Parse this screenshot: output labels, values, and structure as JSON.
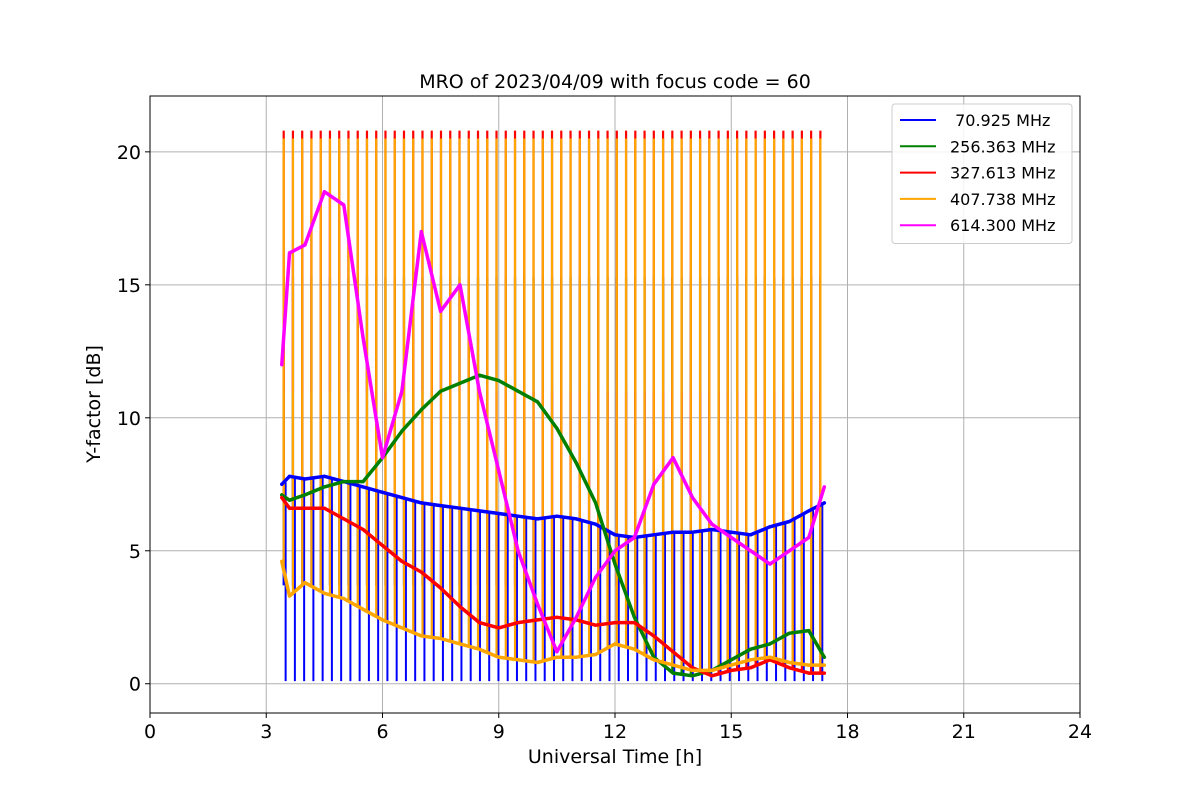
{
  "chart_data": {
    "type": "line",
    "title": "MRO of 2023/04/09 with focus code = 60",
    "xlabel": "Universal Time [h]",
    "ylabel": "Y-factor [dB]",
    "xlim": [
      0,
      24
    ],
    "ylim": [
      -1.1,
      22.1
    ],
    "xticks": [
      0,
      3,
      6,
      9,
      12,
      15,
      18,
      21,
      24
    ],
    "yticks": [
      0,
      5,
      10,
      15,
      20
    ],
    "grid": true,
    "legend_position": "top-right",
    "calibration_peaks": {
      "start": 3.45,
      "end": 17.3,
      "count": 59,
      "top_levels": {
        "70.925 MHz": 3.7,
        "256.363 MHz": 15.3,
        "327.613 MHz": 20.8,
        "407.738 MHz": 20.5,
        "614.300 MHz": 11.0
      },
      "dip_levels": {
        "70.925 MHz": 0.1
      }
    },
    "series": [
      {
        "name": " 70.925 MHz",
        "color": "#0000ff",
        "x": [
          3.4,
          3.6,
          4.0,
          4.5,
          5.0,
          5.5,
          6.0,
          6.5,
          7.0,
          7.5,
          8.0,
          8.5,
          9.0,
          9.5,
          10.0,
          10.5,
          11.0,
          11.5,
          12.0,
          12.5,
          13.0,
          13.5,
          14.0,
          14.5,
          15.0,
          15.5,
          16.0,
          16.5,
          17.0,
          17.4
        ],
        "values": [
          7.5,
          7.8,
          7.7,
          7.8,
          7.6,
          7.4,
          7.2,
          7.0,
          6.8,
          6.7,
          6.6,
          6.5,
          6.4,
          6.3,
          6.2,
          6.3,
          6.2,
          6.0,
          5.6,
          5.5,
          5.6,
          5.7,
          5.7,
          5.8,
          5.7,
          5.6,
          5.9,
          6.1,
          6.5,
          6.8
        ]
      },
      {
        "name": "256.363 MHz",
        "color": "#008000",
        "x": [
          3.4,
          3.6,
          4.0,
          4.5,
          5.0,
          5.5,
          6.0,
          6.5,
          7.0,
          7.5,
          8.0,
          8.5,
          9.0,
          9.5,
          10.0,
          10.5,
          11.0,
          11.5,
          12.0,
          12.5,
          13.0,
          13.5,
          14.0,
          14.5,
          15.0,
          15.5,
          16.0,
          16.5,
          17.0,
          17.4
        ],
        "values": [
          7.1,
          6.9,
          7.1,
          7.4,
          7.6,
          7.6,
          8.5,
          9.5,
          10.3,
          11.0,
          11.3,
          11.6,
          11.4,
          11.0,
          10.6,
          9.6,
          8.3,
          6.8,
          4.5,
          2.5,
          1.0,
          0.4,
          0.3,
          0.5,
          0.9,
          1.3,
          1.5,
          1.9,
          2.0,
          1.0
        ]
      },
      {
        "name": "327.613 MHz",
        "color": "#ff0000",
        "x": [
          3.4,
          3.6,
          4.0,
          4.5,
          5.0,
          5.5,
          6.0,
          6.5,
          7.0,
          7.5,
          8.0,
          8.5,
          9.0,
          9.5,
          10.0,
          10.5,
          11.0,
          11.5,
          12.0,
          12.5,
          13.0,
          13.5,
          14.0,
          14.5,
          15.0,
          15.5,
          16.0,
          16.5,
          17.0,
          17.4
        ],
        "values": [
          7.0,
          6.6,
          6.6,
          6.6,
          6.2,
          5.8,
          5.2,
          4.6,
          4.2,
          3.6,
          2.9,
          2.3,
          2.1,
          2.3,
          2.4,
          2.5,
          2.4,
          2.2,
          2.3,
          2.3,
          1.8,
          1.2,
          0.6,
          0.3,
          0.5,
          0.6,
          0.9,
          0.6,
          0.4,
          0.4
        ]
      },
      {
        "name": "407.738 MHz",
        "color": "#ffa500",
        "x": [
          3.4,
          3.6,
          4.0,
          4.5,
          5.0,
          5.5,
          6.0,
          6.5,
          7.0,
          7.5,
          8.0,
          8.5,
          9.0,
          9.5,
          10.0,
          10.5,
          11.0,
          11.5,
          12.0,
          12.5,
          13.0,
          13.5,
          14.0,
          14.5,
          15.0,
          15.5,
          16.0,
          16.5,
          17.0,
          17.4
        ],
        "values": [
          4.6,
          3.3,
          3.8,
          3.4,
          3.2,
          2.8,
          2.4,
          2.1,
          1.8,
          1.7,
          1.5,
          1.3,
          1.0,
          0.9,
          0.8,
          1.0,
          1.0,
          1.1,
          1.5,
          1.3,
          0.9,
          0.7,
          0.5,
          0.5,
          0.7,
          0.9,
          1.0,
          0.8,
          0.7,
          0.7
        ]
      },
      {
        "name": "614.300 MHz",
        "color": "#ff00ff",
        "x": [
          3.4,
          3.6,
          4.0,
          4.5,
          5.0,
          5.5,
          6.0,
          6.5,
          7.0,
          7.5,
          8.0,
          8.5,
          9.0,
          9.5,
          10.0,
          10.5,
          11.0,
          11.5,
          12.0,
          12.5,
          13.0,
          13.5,
          14.0,
          14.5,
          15.0,
          15.5,
          16.0,
          16.5,
          17.0,
          17.4
        ],
        "values": [
          12.0,
          16.2,
          16.5,
          18.5,
          18.0,
          13.0,
          8.5,
          11.0,
          17.0,
          14.0,
          15.0,
          11.0,
          8.0,
          5.0,
          3.0,
          1.2,
          2.5,
          4.0,
          5.0,
          5.5,
          7.5,
          8.5,
          7.0,
          6.0,
          5.5,
          5.0,
          4.5,
          5.0,
          5.5,
          7.4
        ]
      }
    ]
  }
}
